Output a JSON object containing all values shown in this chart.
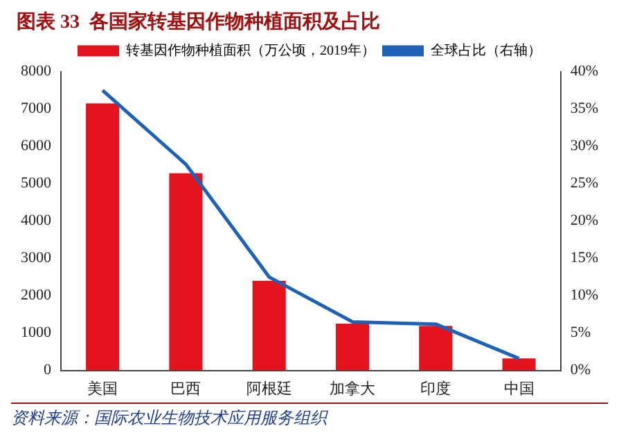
{
  "chart_data": {
    "type": "bar",
    "title": "图表 33  各国家转基因作物种植面积及占比",
    "categories": [
      "美国",
      "巴西",
      "阿根廷",
      "加拿大",
      "印度",
      "中国"
    ],
    "series": [
      {
        "name": "转基因作物种植面积（万公顷，2019年）",
        "color": "#e3141d",
        "values": [
          7150,
          5280,
          2400,
          1250,
          1190,
          320
        ]
      },
      {
        "name": "全球占比（右轴）",
        "type": "line",
        "axis": "y2",
        "color": "#1f62b5",
        "values": [
          37.5,
          27.6,
          12.5,
          6.5,
          6.2,
          1.6
        ]
      }
    ],
    "ylim": [
      0,
      8000
    ],
    "yticks": [
      0,
      1000,
      2000,
      3000,
      4000,
      5000,
      6000,
      7000,
      8000
    ],
    "y2lim": [
      0,
      40
    ],
    "y2ticks": [
      {
        "value": 0,
        "label": "0%"
      },
      {
        "value": 5,
        "label": "5%"
      },
      {
        "value": 10,
        "label": "10%"
      },
      {
        "value": 15,
        "label": "15%"
      },
      {
        "value": 20,
        "label": "20%"
      },
      {
        "value": 25,
        "label": "25%"
      },
      {
        "value": 30,
        "label": "30%"
      },
      {
        "value": 35,
        "label": "35%"
      },
      {
        "value": 40,
        "label": "40%"
      }
    ],
    "grid": false,
    "legend": "top",
    "marker": "none",
    "annotations": [
      "资料来源：国际农业生物技术应用服务组织"
    ]
  }
}
